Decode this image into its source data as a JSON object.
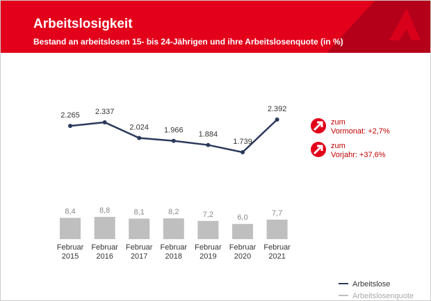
{
  "header": {
    "title": "Arbeitslosigkeit",
    "subtitle": "Bestand an arbeitslosen 15- bis 24-Jährigen und ihre Arbeitslosenquote (in %)"
  },
  "chart_data": [
    {
      "type": "line",
      "categories": [
        "Februar 2015",
        "Februar 2016",
        "Februar 2017",
        "Februar 2018",
        "Februar 2019",
        "Februar 2020",
        "Februar 2021"
      ],
      "series": [
        {
          "name": "Arbeitslose",
          "color": "#2b3a5c",
          "values": [
            2265,
            2337,
            2024,
            1966,
            1884,
            1739,
            2392
          ],
          "value_labels": [
            "2.265",
            "2.337",
            "2.024",
            "1.966",
            "1.884",
            "1.739",
            "2.392"
          ]
        }
      ]
    },
    {
      "type": "bar",
      "categories": [
        "Februar 2015",
        "Februar 2016",
        "Februar 2017",
        "Februar 2018",
        "Februar 2019",
        "Februar 2020",
        "Februar 2021"
      ],
      "series": [
        {
          "name": "Arbeitslosenquote",
          "color": "#bfbfbf",
          "values": [
            8.4,
            8.8,
            8.1,
            8.2,
            7.2,
            6.0,
            7.7
          ],
          "value_labels": [
            "8,4",
            "8,8",
            "8,1",
            "8,2",
            "7,2",
            "6,0",
            "7,7"
          ]
        }
      ]
    }
  ],
  "annotations": [
    {
      "line1": "zum",
      "line2": "Vormonat: +2,7%"
    },
    {
      "line1": "zum",
      "line2": "Vorjahr: +37,6%"
    }
  ]
}
